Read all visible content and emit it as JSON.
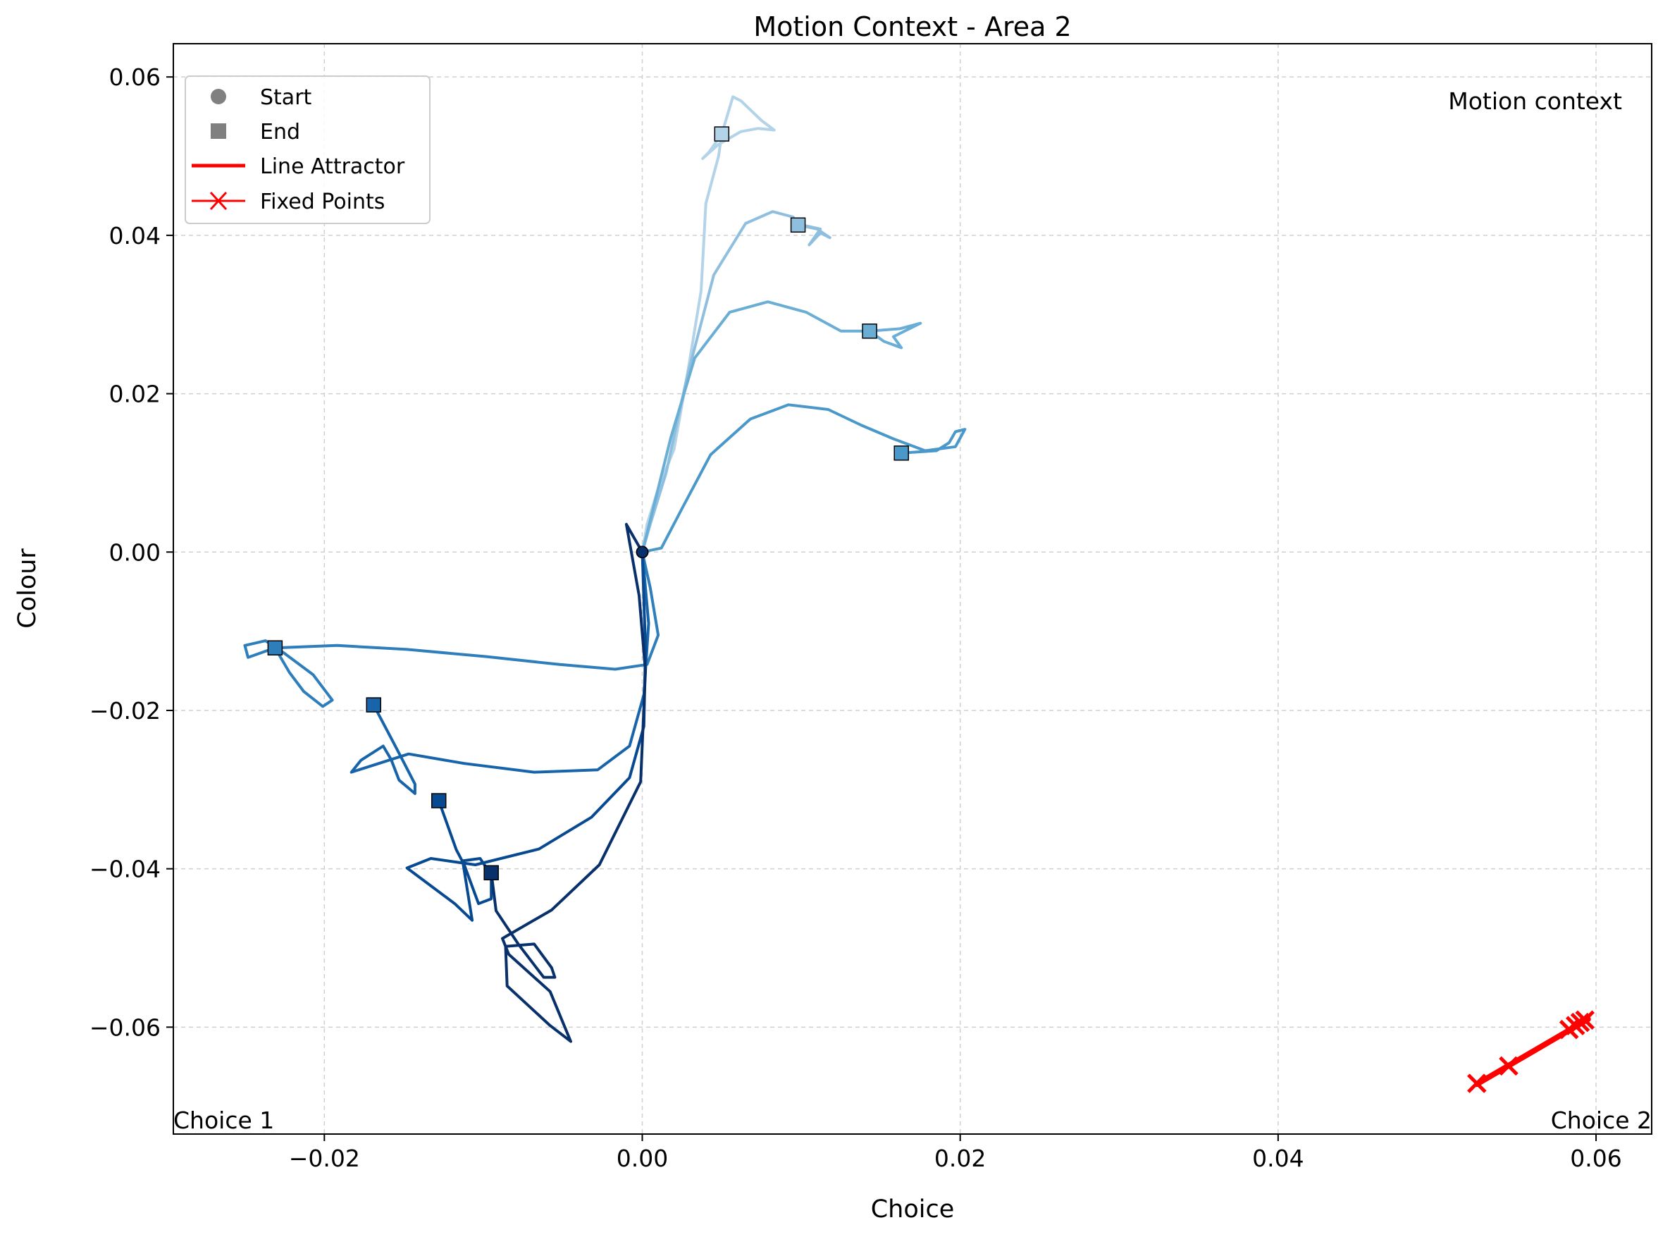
{
  "chart_data": {
    "type": "line",
    "title": "Motion Context - Area 2",
    "xlabel": "Choice",
    "ylabel": "Colour",
    "xlim": [
      -0.0295,
      0.0635
    ],
    "ylim": [
      -0.0735,
      0.0642
    ],
    "grid": true,
    "xticks": [
      -0.02,
      0.0,
      0.02,
      0.04,
      0.06
    ],
    "xtick_labels": [
      "−0.02",
      "0.00",
      "0.02",
      "0.04",
      "0.06"
    ],
    "yticks": [
      0.06,
      0.04,
      0.02,
      0.0,
      -0.02,
      -0.04,
      -0.06
    ],
    "ytick_labels": [
      "0.06",
      "0.04",
      "0.02",
      "0.00",
      "−0.02",
      "−0.04",
      "−0.06"
    ],
    "legend": {
      "placement": "top-left",
      "entries": [
        {
          "label": "Start",
          "marker": "circle",
          "color": "#808080"
        },
        {
          "label": "End",
          "marker": "square",
          "color": "#808080"
        },
        {
          "label": "Line Attractor",
          "marker": "line",
          "color": "#ff0000"
        },
        {
          "label": "Fixed Points",
          "marker": "x-line",
          "color": "#ff0000"
        }
      ]
    },
    "annotations": {
      "context": "Motion context",
      "choice1": "Choice 1",
      "choice2": "Choice 2"
    },
    "series": [
      {
        "color": "#b3d3e8",
        "start": [
          0.0,
          0.0
        ],
        "end": [
          0.005,
          0.0528
        ],
        "points": [
          [
            0.0,
            0.0
          ],
          [
            0.0003,
            0.0035
          ],
          [
            0.001,
            0.008
          ],
          [
            0.002,
            0.013
          ],
          [
            0.0028,
            0.022
          ],
          [
            0.0037,
            0.033
          ],
          [
            0.004,
            0.044
          ],
          [
            0.0048,
            0.05
          ],
          [
            0.005,
            0.0528
          ],
          [
            0.0057,
            0.0575
          ],
          [
            0.0062,
            0.057
          ],
          [
            0.0075,
            0.0545
          ],
          [
            0.0083,
            0.0533
          ],
          [
            0.0073,
            0.0535
          ],
          [
            0.0062,
            0.0531
          ],
          [
            0.0048,
            0.0515
          ],
          [
            0.0038,
            0.0497
          ],
          [
            0.0042,
            0.0505
          ],
          [
            0.005,
            0.0528
          ]
        ]
      },
      {
        "color": "#8fbfdf",
        "start": [
          0.0,
          0.0
        ],
        "end": [
          0.0098,
          0.0413
        ],
        "points": [
          [
            0.0,
            0.0
          ],
          [
            0.0005,
            0.0035
          ],
          [
            0.0015,
            0.01
          ],
          [
            0.0028,
            0.022
          ],
          [
            0.0045,
            0.035
          ],
          [
            0.0065,
            0.0415
          ],
          [
            0.0082,
            0.043
          ],
          [
            0.0095,
            0.0423
          ],
          [
            0.0098,
            0.0413
          ],
          [
            0.011,
            0.0408
          ],
          [
            0.0118,
            0.0397
          ],
          [
            0.0112,
            0.0403
          ],
          [
            0.0105,
            0.0388
          ],
          [
            0.0112,
            0.0408
          ],
          [
            0.0103,
            0.0412
          ],
          [
            0.0098,
            0.0413
          ]
        ]
      },
      {
        "color": "#6aaed6",
        "start": [
          0.0,
          0.0
        ],
        "end": [
          0.0143,
          0.0279
        ],
        "points": [
          [
            0.0,
            0.0
          ],
          [
            0.0005,
            0.004
          ],
          [
            0.0018,
            0.0145
          ],
          [
            0.0033,
            0.0245
          ],
          [
            0.0055,
            0.0303
          ],
          [
            0.0079,
            0.0316
          ],
          [
            0.0103,
            0.0303
          ],
          [
            0.0125,
            0.0279
          ],
          [
            0.0143,
            0.0279
          ],
          [
            0.0152,
            0.0266
          ],
          [
            0.0163,
            0.0258
          ],
          [
            0.0158,
            0.0272
          ],
          [
            0.0175,
            0.0289
          ],
          [
            0.0162,
            0.0282
          ],
          [
            0.0143,
            0.0279
          ]
        ]
      },
      {
        "color": "#4a98c9",
        "start": [
          0.0,
          0.0
        ],
        "end": [
          0.0163,
          0.0125
        ],
        "points": [
          [
            0.0,
            0.0
          ],
          [
            0.0012,
            0.0005
          ],
          [
            0.0025,
            0.0055
          ],
          [
            0.0043,
            0.0123
          ],
          [
            0.0068,
            0.0168
          ],
          [
            0.0092,
            0.0186
          ],
          [
            0.0117,
            0.018
          ],
          [
            0.0138,
            0.016
          ],
          [
            0.0158,
            0.0143
          ],
          [
            0.0178,
            0.0128
          ],
          [
            0.0197,
            0.0133
          ],
          [
            0.0203,
            0.0155
          ],
          [
            0.0197,
            0.0152
          ],
          [
            0.0193,
            0.0138
          ],
          [
            0.0185,
            0.0128
          ],
          [
            0.0163,
            0.0125
          ]
        ]
      },
      {
        "color": "#2e7ebc",
        "start": [
          0.0,
          0.0
        ],
        "end": [
          -0.0231,
          -0.0121
        ],
        "points": [
          [
            0.0,
            0.0
          ],
          [
            0.0005,
            -0.0045
          ],
          [
            0.001,
            -0.0105
          ],
          [
            0.0003,
            -0.0142
          ],
          [
            -0.0017,
            -0.0148
          ],
          [
            -0.0052,
            -0.0142
          ],
          [
            -0.0098,
            -0.0132
          ],
          [
            -0.0148,
            -0.0123
          ],
          [
            -0.0192,
            -0.0118
          ],
          [
            -0.0231,
            -0.0121
          ],
          [
            -0.0248,
            -0.0133
          ],
          [
            -0.025,
            -0.0118
          ],
          [
            -0.0237,
            -0.0112
          ],
          [
            -0.0225,
            -0.0128
          ],
          [
            -0.0207,
            -0.0155
          ],
          [
            -0.0195,
            -0.0187
          ],
          [
            -0.0201,
            -0.0195
          ],
          [
            -0.0213,
            -0.0176
          ],
          [
            -0.0222,
            -0.0152
          ],
          [
            -0.0231,
            -0.0121
          ]
        ]
      },
      {
        "color": "#1764ab",
        "start": [
          0.0,
          0.0
        ],
        "end": [
          -0.0169,
          -0.0193
        ],
        "points": [
          [
            0.0,
            0.0
          ],
          [
            0.0004,
            -0.009
          ],
          [
            0.0001,
            -0.018
          ],
          [
            -0.0008,
            -0.0245
          ],
          [
            -0.0028,
            -0.0275
          ],
          [
            -0.0068,
            -0.0278
          ],
          [
            -0.0112,
            -0.0267
          ],
          [
            -0.0147,
            -0.0255
          ],
          [
            -0.0183,
            -0.0278
          ],
          [
            -0.0177,
            -0.0263
          ],
          [
            -0.0163,
            -0.0245
          ],
          [
            -0.0158,
            -0.0262
          ],
          [
            -0.0153,
            -0.0288
          ],
          [
            -0.0143,
            -0.0305
          ],
          [
            -0.0143,
            -0.0293
          ],
          [
            -0.0152,
            -0.0258
          ],
          [
            -0.0158,
            -0.0235
          ],
          [
            -0.0169,
            -0.0193
          ]
        ]
      },
      {
        "color": "#084a91",
        "start": [
          0.0,
          0.0
        ],
        "end": [
          -0.0128,
          -0.0314
        ],
        "points": [
          [
            0.0,
            0.0
          ],
          [
            0.0002,
            -0.012
          ],
          [
            0.0001,
            -0.022
          ],
          [
            -0.0008,
            -0.0285
          ],
          [
            -0.0032,
            -0.0335
          ],
          [
            -0.0065,
            -0.0375
          ],
          [
            -0.0105,
            -0.0395
          ],
          [
            -0.0133,
            -0.0387
          ],
          [
            -0.0148,
            -0.0399
          ],
          [
            -0.0118,
            -0.0444
          ],
          [
            -0.0107,
            -0.0465
          ],
          [
            -0.0113,
            -0.039
          ],
          [
            -0.0102,
            -0.0387
          ],
          [
            -0.0095,
            -0.0408
          ],
          [
            -0.0095,
            -0.0438
          ],
          [
            -0.0103,
            -0.0444
          ],
          [
            -0.0112,
            -0.0395
          ],
          [
            -0.0117,
            -0.0376
          ],
          [
            -0.0128,
            -0.0314
          ]
        ]
      },
      {
        "color": "#08306b",
        "start": [
          0.0,
          0.0
        ],
        "end": [
          -0.0095,
          -0.0405
        ],
        "points": [
          [
            0.0,
            0.0
          ],
          [
            -0.001,
            0.0035
          ],
          [
            -0.0002,
            -0.0055
          ],
          [
            0.0002,
            -0.015
          ],
          [
            -0.0001,
            -0.029
          ],
          [
            -0.0027,
            -0.0395
          ],
          [
            -0.0057,
            -0.0452
          ],
          [
            -0.0088,
            -0.0488
          ],
          [
            -0.0084,
            -0.0508
          ],
          [
            -0.0058,
            -0.0555
          ],
          [
            -0.0045,
            -0.0618
          ],
          [
            -0.0058,
            -0.0598
          ],
          [
            -0.0085,
            -0.0548
          ],
          [
            -0.0086,
            -0.0498
          ],
          [
            -0.0068,
            -0.0495
          ],
          [
            -0.0057,
            -0.0525
          ],
          [
            -0.0055,
            -0.0537
          ],
          [
            -0.0062,
            -0.0537
          ],
          [
            -0.0078,
            -0.0495
          ],
          [
            -0.0092,
            -0.0453
          ],
          [
            -0.0095,
            -0.0405
          ]
        ]
      }
    ],
    "line_attractor": {
      "color": "#ff0000",
      "points": [
        [
          0.0525,
          -0.0672
        ],
        [
          0.0595,
          -0.059
        ]
      ]
    },
    "fixed_points": {
      "color": "#ff0000",
      "points": [
        [
          0.0525,
          -0.0671
        ],
        [
          0.0545,
          -0.0649
        ],
        [
          0.0583,
          -0.0603
        ],
        [
          0.0587,
          -0.0598
        ],
        [
          0.059,
          -0.0594
        ],
        [
          0.0593,
          -0.0591
        ]
      ]
    }
  }
}
